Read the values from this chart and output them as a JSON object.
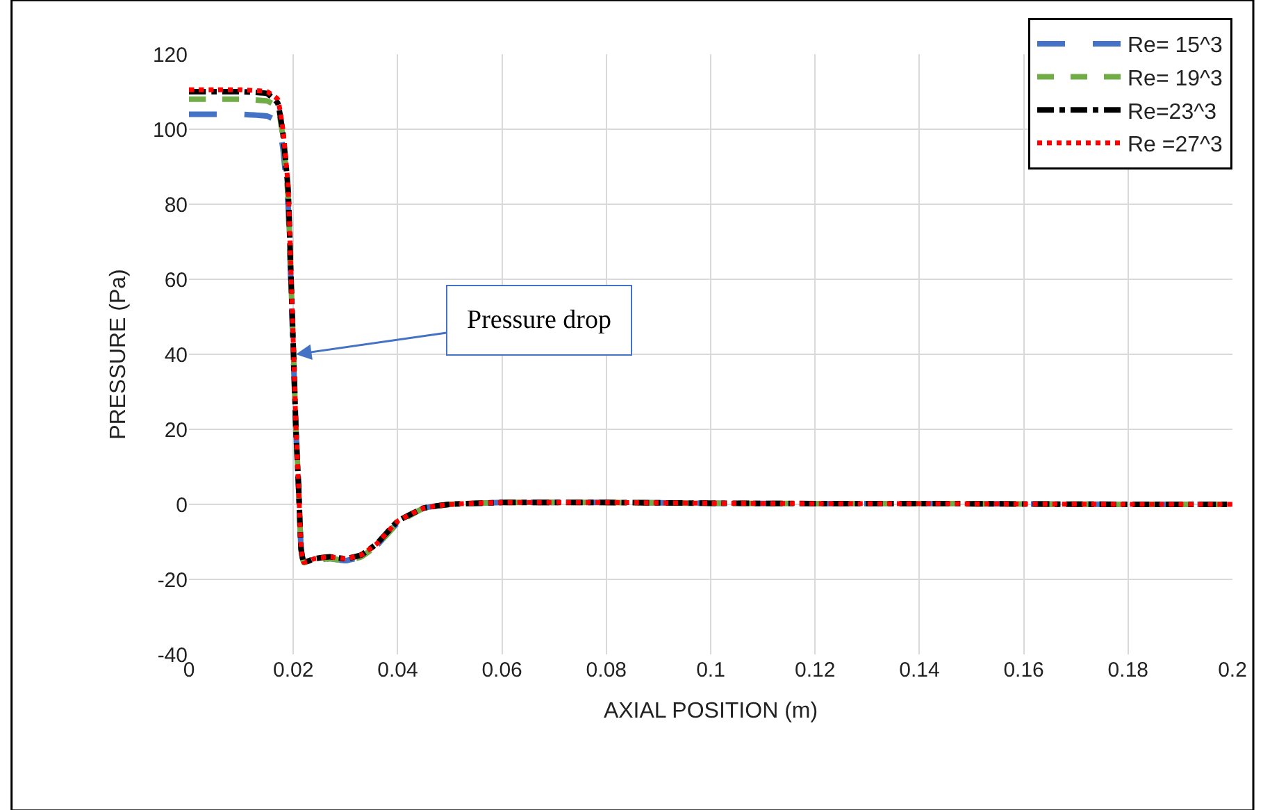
{
  "chart_data": {
    "type": "line",
    "xlabel": "AXIAL POSITION (m)",
    "ylabel": "PRESSURE (Pa)",
    "x": [
      0,
      0.005,
      0.01,
      0.015,
      0.017,
      0.018,
      0.019,
      0.0195,
      0.02,
      0.0205,
      0.021,
      0.0215,
      0.022,
      0.024,
      0.027,
      0.03,
      0.033,
      0.036,
      0.04,
      0.045,
      0.05,
      0.06,
      0.08,
      0.1,
      0.12,
      0.14,
      0.16,
      0.18,
      0.2
    ],
    "series": [
      {
        "name": "Re= 15^3",
        "color": "#4472c4",
        "line_style": "longdash",
        "values": [
          104,
          104,
          104,
          103.5,
          102,
          95,
          80,
          60,
          40,
          20,
          5,
          -12,
          -15.5,
          -15,
          -14.5,
          -15,
          -14,
          -11,
          -5,
          -1,
          0,
          0.5,
          0.5,
          0.3,
          0.2,
          0.2,
          0.1,
          0,
          0
        ]
      },
      {
        "name": "Re= 19^3",
        "color": "#70ad47",
        "line_style": "dashed",
        "values": [
          108,
          108,
          108,
          107.5,
          106,
          98,
          82,
          62,
          42,
          20,
          5,
          -12,
          -15.5,
          -15,
          -14.5,
          -15,
          -14,
          -11,
          -5,
          -1,
          0,
          0.5,
          0.5,
          0.3,
          0.2,
          0.2,
          0.1,
          0,
          0
        ]
      },
      {
        "name": "Re=23^3",
        "color": "#000000",
        "line_style": "dashdot",
        "values": [
          110,
          110,
          110,
          109.5,
          107,
          99,
          84,
          63,
          42,
          20,
          5,
          -12,
          -15.5,
          -14.5,
          -14,
          -14.5,
          -13.5,
          -10.5,
          -4.5,
          -1,
          0,
          0.5,
          0.5,
          0.3,
          0.2,
          0.2,
          0.1,
          0,
          0
        ]
      },
      {
        "name": "Re =27^3",
        "color": "#ff0000",
        "line_style": "dotted",
        "values": [
          110.5,
          110.5,
          110.5,
          110,
          108,
          100,
          85,
          64,
          43,
          21,
          5,
          -12,
          -15.5,
          -14.5,
          -14,
          -14.5,
          -13.5,
          -10.5,
          -4.5,
          -1,
          0,
          0.5,
          0.5,
          0.3,
          0.2,
          0.2,
          0.1,
          0,
          0
        ]
      }
    ],
    "annotations": [
      {
        "text": "Pressure drop",
        "x": 0.0205,
        "y": 40
      }
    ],
    "xlim": [
      0,
      0.2
    ],
    "xticks": [
      0,
      0.02,
      0.04,
      0.06,
      0.08,
      0.1,
      0.12,
      0.14,
      0.16,
      0.18,
      0.2
    ],
    "ylim": [
      -40,
      120
    ],
    "yticks": [
      -40,
      -20,
      0,
      20,
      40,
      60,
      80,
      100,
      120
    ],
    "grid": true,
    "legend": "top right",
    "marker": "none"
  }
}
